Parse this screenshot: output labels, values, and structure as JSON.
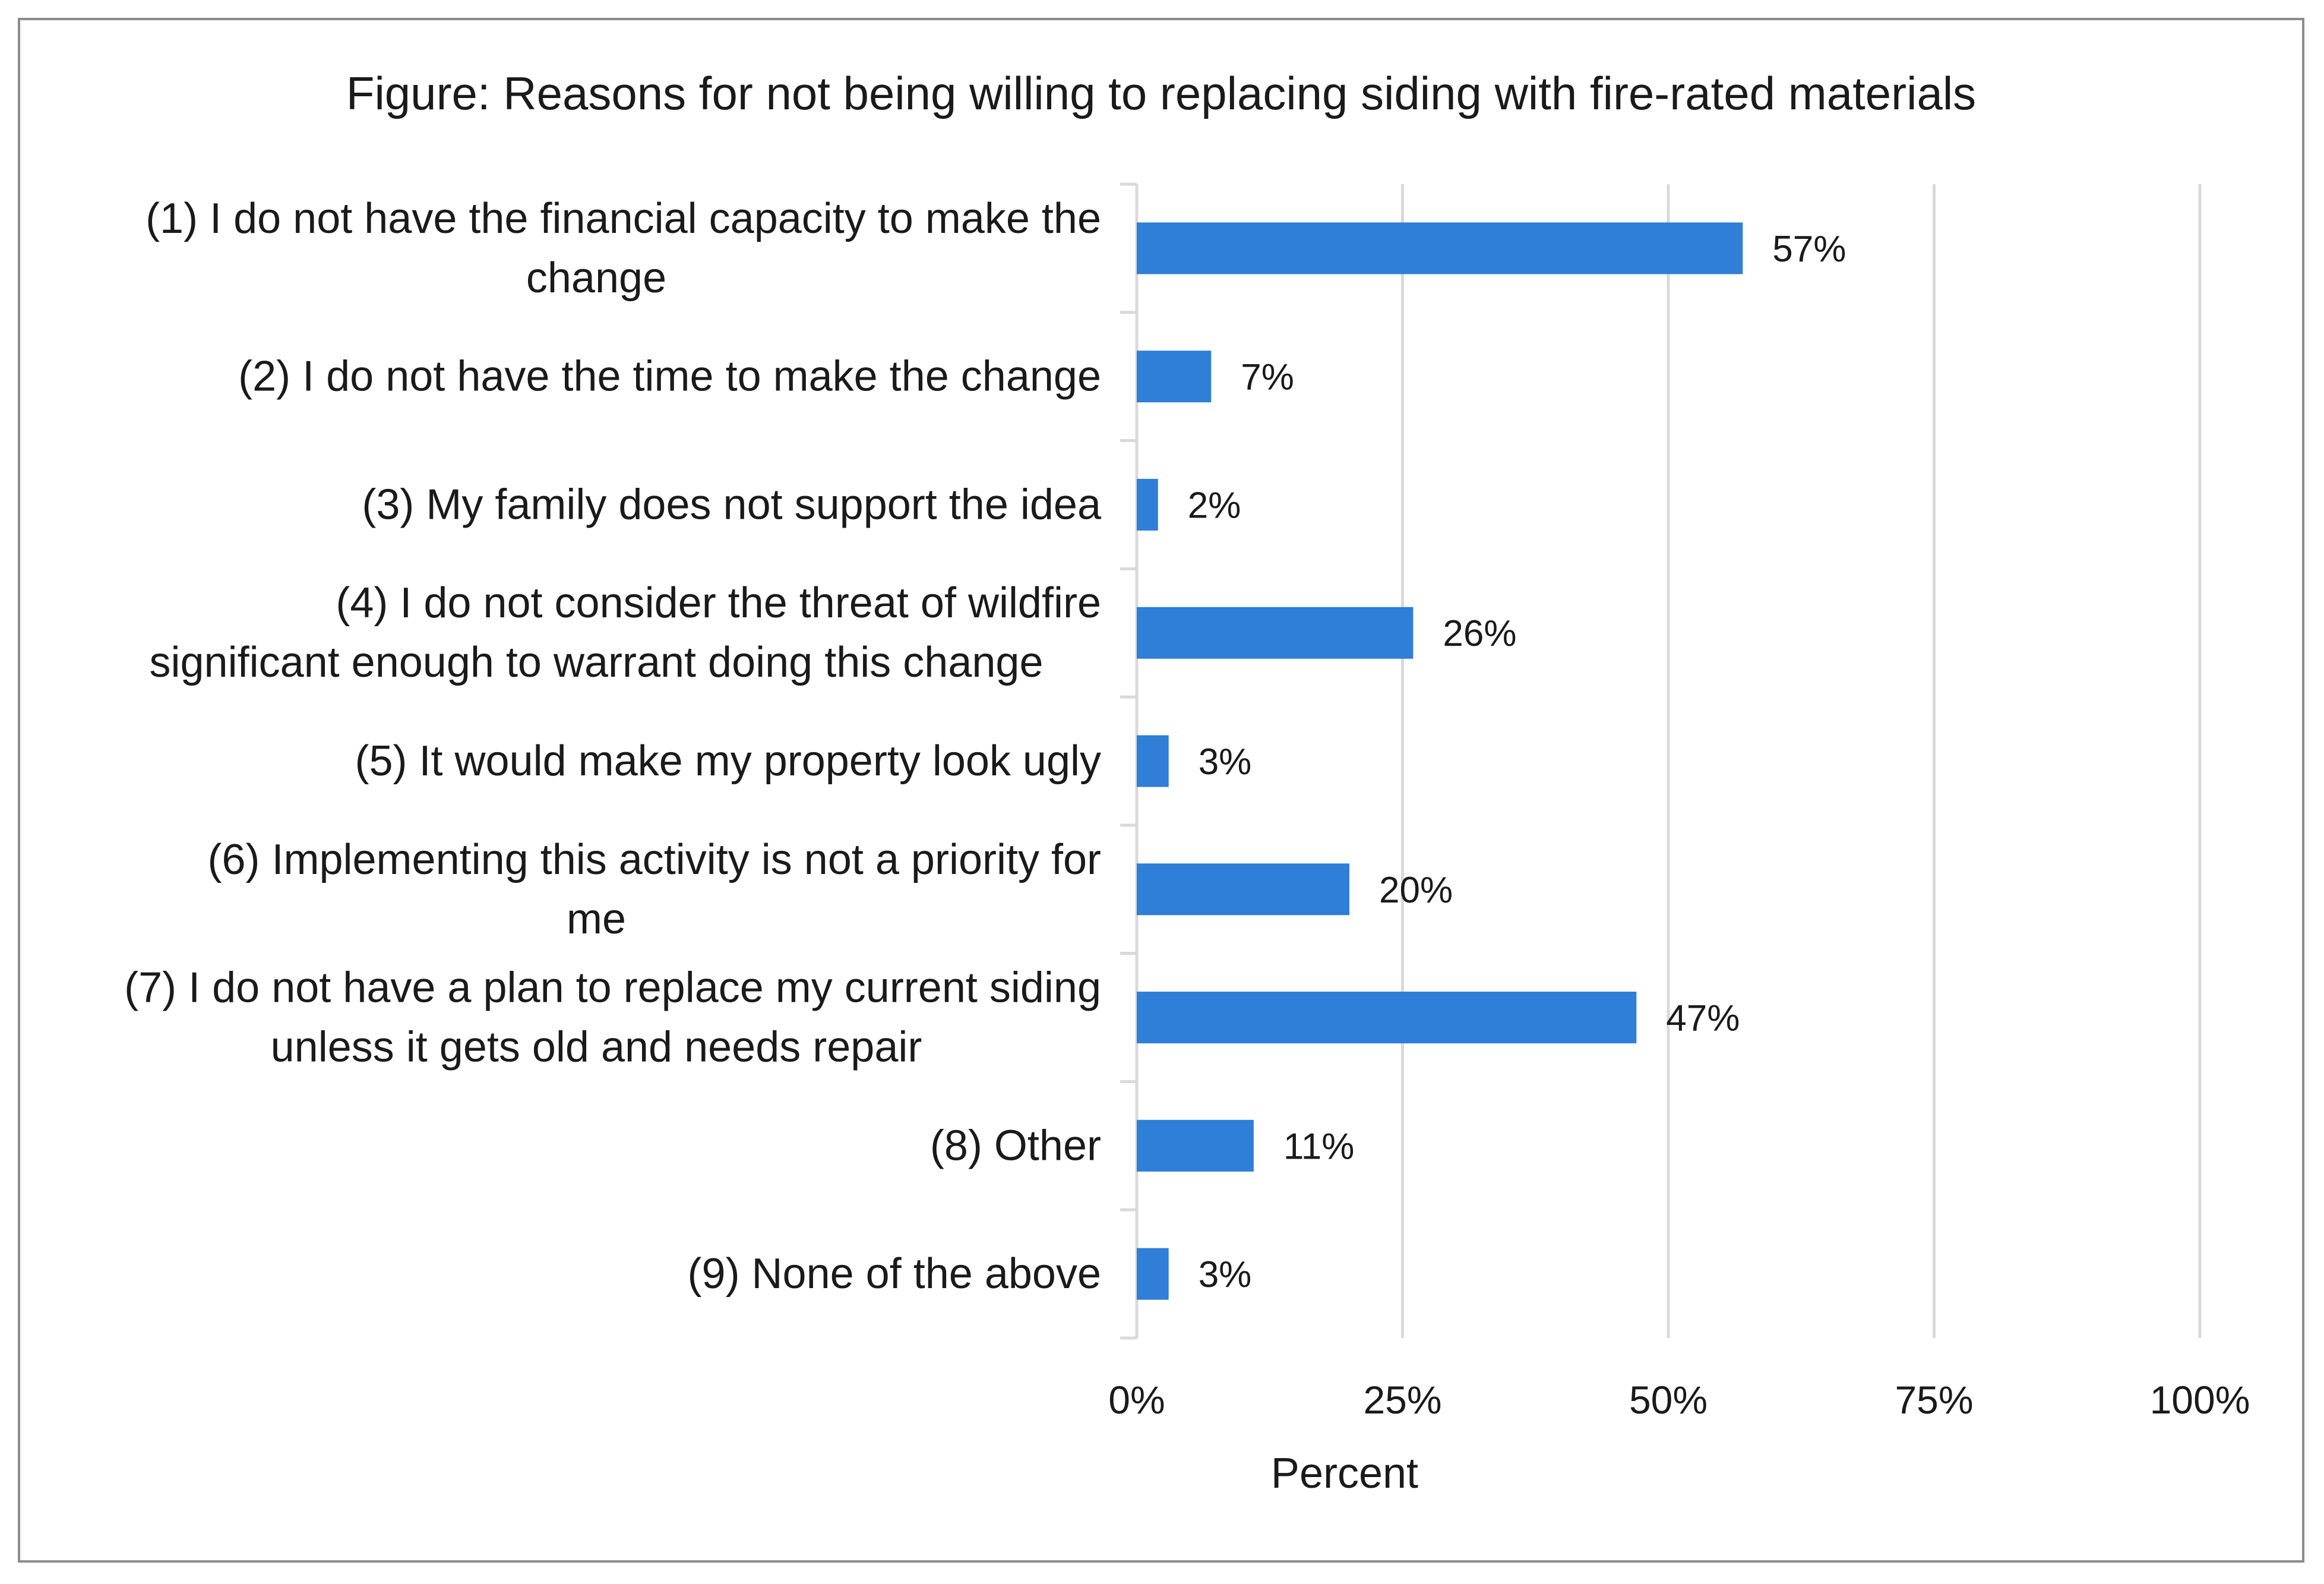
{
  "chart_data": {
    "type": "bar",
    "orientation": "horizontal",
    "title": "Figure: Reasons for not being willing to replacing siding with fire-rated materials",
    "xlabel": "Percent",
    "ylabel": "",
    "categories": [
      [
        "(1) I do not have the financial capacity to make the",
        "change"
      ],
      [
        "(2) I do not have the time to make the change"
      ],
      [
        "(3) My family does not support the idea"
      ],
      [
        "(4) I do not consider the threat of wildfire",
        "significant enough to warrant doing this change"
      ],
      [
        "(5) It would make my property look ugly"
      ],
      [
        "(6) Implementing this activity is not a priority for",
        "me"
      ],
      [
        "(7) I do not have a plan to replace my current siding",
        "unless it gets old and needs repair"
      ],
      [
        "(8) Other"
      ],
      [
        "(9) None of the above"
      ]
    ],
    "values": [
      57,
      7,
      2,
      26,
      3,
      20,
      47,
      11,
      3
    ],
    "data_labels": [
      "57%",
      "7%",
      "2%",
      "26%",
      "3%",
      "20%",
      "47%",
      "11%",
      "3%"
    ],
    "xlim": [
      0,
      100
    ],
    "xticks": [
      0,
      25,
      50,
      75,
      100
    ],
    "xtick_labels": [
      "0%",
      "25%",
      "50%",
      "75%",
      "100%"
    ],
    "grid": "vertical",
    "legend": "none",
    "colors": {
      "bar": "#2f7ed8",
      "grid": "#d9d9d9",
      "text": "#1a1a1a",
      "frame": "#8c8c8c"
    }
  }
}
